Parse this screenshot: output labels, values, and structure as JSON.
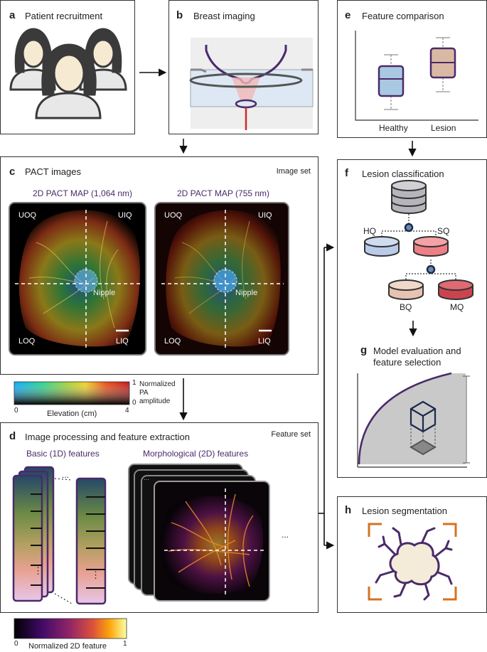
{
  "panel_a": {
    "label": "a",
    "title": "Patient recruitment"
  },
  "panel_b": {
    "label": "b",
    "title": "Breast imaging"
  },
  "panel_c": {
    "label": "c",
    "title": "PACT images",
    "tag": "Image set",
    "img1_title": "2D PACT MAP (1,064 nm)",
    "img2_title": "2D PACT MAP (755 nm)",
    "quadrants": {
      "uoq": "UOQ",
      "uiq": "UIQ",
      "loq": "LOQ",
      "liq": "LIQ"
    },
    "nipple": "Nipple"
  },
  "colorbar1": {
    "tick_0": "0",
    "tick_4": "4",
    "xlabel": "Elevation (cm)",
    "tick_top": "1",
    "tick_bottom": "0",
    "side_label_1": "Normalized",
    "side_label_2": "PA",
    "side_label_3": "amplitude"
  },
  "panel_d": {
    "label": "d",
    "title": "Image processing and feature extraction",
    "tag": "Feature set",
    "basic_title": "Basic (1D) features",
    "morph_title": "Morphological (2D) features",
    "dots": "...",
    "vdots": "⋮"
  },
  "colorbar2": {
    "tick_0": "0",
    "tick_1": "1",
    "label": "Normalized 2D feature"
  },
  "panel_e": {
    "label": "e",
    "title": "Feature comparison",
    "healthy": "Healthy",
    "lesion": "Lesion"
  },
  "panel_f": {
    "label": "f",
    "title": "Lesion classification",
    "hq": "HQ",
    "sq": "SQ",
    "bq": "BQ",
    "mq": "MQ"
  },
  "panel_g": {
    "label": "g",
    "title_1": "Model evaluation and",
    "title_2": "feature selection"
  },
  "panel_h": {
    "label": "h",
    "title": "Lesion segmentation"
  },
  "colors": {
    "purple": "#4a2a6a",
    "healthy_box": "#a9c9e2",
    "lesion_box": "#d9b9a3",
    "hq_disk": "#b9cbe8",
    "sq_disk": "#ef7f86",
    "bq_disk": "#e7c3b1",
    "mq_disk": "#cc4350",
    "lesion_orange": "#d9701f",
    "nipple_blue": "#3ea2e6"
  }
}
